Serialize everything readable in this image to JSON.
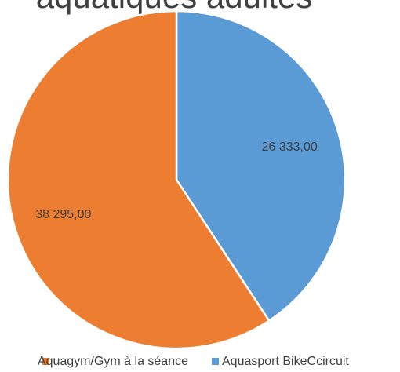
{
  "chart_data": {
    "type": "pie",
    "title": "aquatiques adultes",
    "categories": [
      "Aquagym/Gym à la séance",
      "Aquasport BikeCcircuit"
    ],
    "values": [
      38295,
      26333
    ],
    "value_labels": [
      "38 295,00",
      "26 333,00"
    ],
    "colors": [
      "#ed7d31",
      "#5b9bd5"
    ],
    "legend": "bottom"
  }
}
